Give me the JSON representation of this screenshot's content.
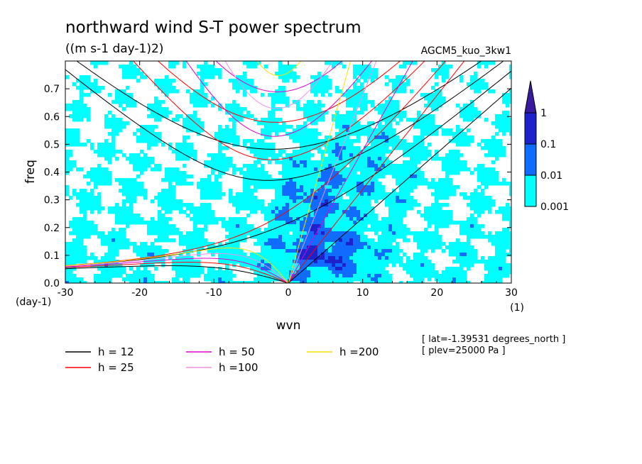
{
  "chart_data": {
    "type": "heatmap",
    "title": "northward wind S-T power spectrum",
    "units": "((m s-1 day-1)2)",
    "experiment": "AGCM5_kuo_3kw1",
    "xlabel": "wvn",
    "ylabel": "freq",
    "x_unit": "(1)",
    "y_unit": "(day-1)",
    "xlim": [
      -30,
      30
    ],
    "ylim": [
      0,
      0.8
    ],
    "x_ticks": [
      "-30",
      "-20",
      "-10",
      "0",
      "10",
      "20",
      "30"
    ],
    "x_tick_values": [
      -30,
      -20,
      -10,
      0,
      10,
      20,
      30
    ],
    "y_ticks": [
      "0.0",
      "0.1",
      "0.2",
      "0.3",
      "0.4",
      "0.5",
      "0.6",
      "0.7"
    ],
    "y_tick_values": [
      0,
      0.1,
      0.2,
      0.3,
      0.4,
      0.5,
      0.6,
      0.7
    ],
    "colorbar": {
      "levels": [
        "0.001",
        "0.01",
        "0.1",
        "1"
      ],
      "colors": [
        "#00ffff",
        "#0f6cff",
        "#1c23cc",
        "#3a1aa0"
      ]
    },
    "dispersion_curves": [
      {
        "name": "h = 12",
        "h": 12,
        "color": "#000000"
      },
      {
        "name": "h = 25",
        "h": 25,
        "color": "#ff0000"
      },
      {
        "name": "h = 50",
        "h": 50,
        "color": "#e000d0"
      },
      {
        "name": "h =100",
        "h": 100,
        "color": "#f090e8"
      },
      {
        "name": "h =200",
        "h": 200,
        "color": "#ffe000"
      }
    ],
    "annotations": [
      "[ lat=-1.39531 degrees_north ]",
      "[ plev=25000 Pa ]"
    ]
  }
}
